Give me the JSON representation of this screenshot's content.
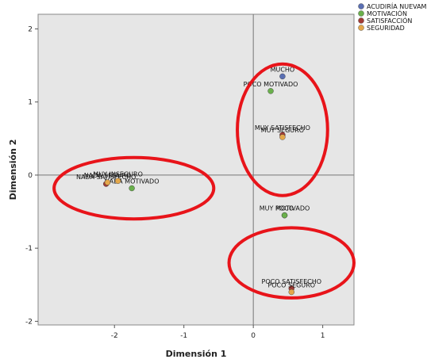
{
  "chart_data": {
    "type": "scatter",
    "xlabel": "Dimensión 1",
    "ylabel": "Dimensión 2",
    "xlim": [
      -3.1,
      1.45
    ],
    "ylim": [
      -2.05,
      2.2
    ],
    "x_ticks": [
      {
        "value": -2,
        "label": "-2"
      },
      {
        "value": -1,
        "label": "-1"
      },
      {
        "value": 0,
        "label": "0"
      },
      {
        "value": 1,
        "label": "1"
      }
    ],
    "y_ticks": [
      {
        "value": 2,
        "label": "2"
      },
      {
        "value": 1,
        "label": "1"
      },
      {
        "value": 0,
        "label": "0"
      },
      {
        "value": -1,
        "label": "-1"
      },
      {
        "value": -2,
        "label": "-2"
      }
    ],
    "grid": false,
    "reference_lines": {
      "x": 0,
      "y": 0
    },
    "legend_position": "top-right",
    "series": [
      {
        "name": "ACUDIRÍA NUEVAMENTE",
        "color": "#5a6fb3",
        "points": [
          {
            "label": "MUCHO",
            "x": 0.42,
            "y": 1.35
          },
          {
            "label": "POCO",
            "x": 0.45,
            "y": -0.55
          }
        ]
      },
      {
        "name": "MOTIVACIÓN",
        "color": "#6ab04c",
        "points": [
          {
            "label": "POCO MOTIVADO",
            "x": 0.25,
            "y": 1.15
          },
          {
            "label": "NADA MOTIVADO",
            "x": -1.75,
            "y": -0.18
          },
          {
            "label": "MUY MOTIVADO",
            "x": 0.45,
            "y": -0.55
          }
        ]
      },
      {
        "name": "SATISFACCIÓN",
        "color": "#a33b35",
        "points": [
          {
            "label": "MUY SATISFECHO",
            "x": 0.42,
            "y": 0.55
          },
          {
            "label": "NADA SATISFECHO",
            "x": -2.12,
            "y": -0.12
          },
          {
            "label": "POCO SATISFECHO",
            "x": 0.55,
            "y": -1.55
          }
        ]
      },
      {
        "name": "SEGURIDAD",
        "color": "#e5a84b",
        "points": [
          {
            "label": "MUY SEGURO",
            "x": 0.42,
            "y": 0.52
          },
          {
            "label": "NADA SEGURO",
            "x": -2.1,
            "y": -0.1
          },
          {
            "label": "POCO SEGURO",
            "x": 0.55,
            "y": -1.6
          },
          {
            "label": "MUY INSEGURO",
            "x": -1.95,
            "y": -0.08
          }
        ]
      }
    ],
    "annotations": [
      {
        "type": "ellipse",
        "color": "#e8141a",
        "cx": 0.42,
        "cy": 0.62,
        "rx": 0.65,
        "ry": 0.9
      },
      {
        "type": "ellipse",
        "color": "#e8141a",
        "cx": -1.72,
        "cy": -0.18,
        "rx": 1.15,
        "ry": 0.42
      },
      {
        "type": "ellipse",
        "color": "#e8141a",
        "cx": 0.55,
        "cy": -1.2,
        "rx": 0.9,
        "ry": 0.48
      }
    ]
  }
}
